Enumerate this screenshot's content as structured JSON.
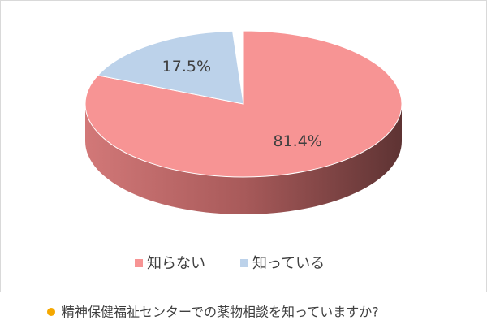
{
  "chart_data": {
    "type": "pie",
    "labels": [
      "知らない",
      "知っている"
    ],
    "values": [
      81.4,
      17.5
    ],
    "value_labels": [
      "81.4%",
      "17.5%"
    ],
    "colors": [
      "#f79494",
      "#bcd2ea"
    ],
    "legend": "bottom"
  },
  "caption": "精神保健福祉センターでの薬物相談を知っていますか?"
}
